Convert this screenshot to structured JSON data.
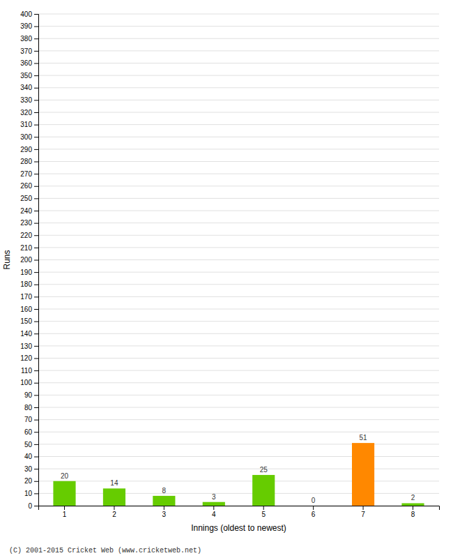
{
  "chart_data": {
    "type": "bar",
    "categories": [
      "1",
      "2",
      "3",
      "4",
      "5",
      "6",
      "7",
      "8"
    ],
    "values": [
      20,
      14,
      8,
      3,
      25,
      0,
      51,
      2
    ],
    "colors": [
      "#66cc00",
      "#66cc00",
      "#66cc00",
      "#66cc00",
      "#66cc00",
      "#66cc00",
      "#ff8800",
      "#66cc00"
    ],
    "xlabel": "Innings (oldest to newest)",
    "ylabel": "Runs",
    "ylim": [
      0,
      400
    ],
    "yticks": [
      0,
      10,
      20,
      30,
      40,
      50,
      60,
      70,
      80,
      90,
      100,
      110,
      120,
      130,
      140,
      150,
      160,
      170,
      180,
      190,
      200,
      210,
      220,
      230,
      240,
      250,
      260,
      270,
      280,
      290,
      300,
      310,
      320,
      330,
      340,
      350,
      360,
      370,
      380,
      390,
      400
    ],
    "grid": true,
    "data_labels": true,
    "footer": "(C) 2001-2015 Cricket Web (www.cricketweb.net)"
  }
}
